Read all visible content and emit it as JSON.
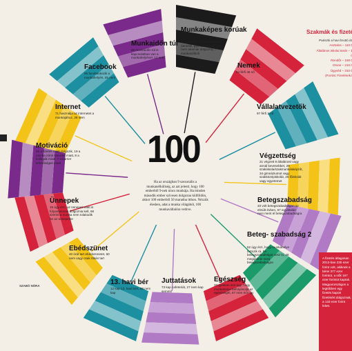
{
  "center": {
    "number": "100",
    "text": "Ha az országban 9 szezonális a munkanélküliség, az azt jelenti, hogy 100 emberből 9-nek nincs munkája. Ha minden második ember szívesen dolgozna külföldön, akkor 100 emberből 50 maradna itthon. Nézzük élesben, adat a munka világából, 100 munkavállalóra vetítve."
  },
  "segments": [
    {
      "id": "munkakepes",
      "title": "Munkaképes korúak",
      "body": "61 dolgozik, 12 nem dolgozik (tanulók, gyesen vannak vagy nem akarnak dolgozni), 7 munkanélküli",
      "color": "#1b1b1b"
    },
    {
      "id": "nemek",
      "title": "Nemek",
      "body": "54 férfi\n46 nő",
      "color": "#d4233b"
    },
    {
      "id": "vallalatvezetok",
      "title": "Vállalatvezetők",
      "body": "97 férfi\n3 nő",
      "color": "#1c8fa0"
    },
    {
      "id": "vegzettseg",
      "title": "Végzettség",
      "body": "21 végzett 8 általánost vagy annál kevesebbet, 29 szakiskola/szakmunkásképzőt, 34 gimnáziumot vagy szakközépiskolát, 26 főiskolát vagy egyetemet",
      "color": "#f3c318"
    },
    {
      "id": "betegszabadsag",
      "title": "Betegszabadság",
      "body": "33 volt betegszabadságon az elmúlt évben, 67 egyáltalán nem ment el betegszabadságra",
      "color": "#b07ac4"
    },
    {
      "id": "betegszabadsag2",
      "title": "Beteg- szabadság 2",
      "body": "52 úgy érzi, hogy munkahelye tartozik rá, ha betegszabadságot vesz ki, 48 megijednie menj betegszabadságra",
      "color": "#1b9a6a"
    },
    {
      "id": "egeszseg",
      "title": "Egészség",
      "body": "33 gyakran érzi úgy, hogy munkahelye befolyásolja az egészségét, 67 nem érzi így",
      "color": "#d4233b"
    },
    {
      "id": "juttatasok",
      "title": "Juttatások",
      "body": "73 kap cafeteriát, 27 nem kap semmit",
      "color": "#b07ac4"
    },
    {
      "id": "havi-ber",
      "title": "13. havi bér",
      "body": "12 kap 13. havi bért, 88 nem kap",
      "color": "#1c8fa0"
    },
    {
      "id": "ebedszunet",
      "title": "Ebédszünet",
      "body": "40 órát tart ebédszünetet, 60 nem vagy csak ritkán tart",
      "color": "#f3c318"
    },
    {
      "id": "unnepek",
      "title": "Ünnepek",
      "body": "15 úgy érzi, az ünnepek alatt is folyamatosan dolgoznia kell, 68 szerint a munka nem tolakodik be az ünnepeibe",
      "color": "#d4233b"
    },
    {
      "id": "motivacio",
      "title": "Motiváció",
      "body": "45 a fizetés miatt dolgozik, 19 a munka iránti szeretet miatt, 8 a kollégák miatt, 7 a karrier lehetőségek miatt",
      "color": "#7a2a8a"
    },
    {
      "id": "internet",
      "title": "Internet",
      "body": "71 használja az internetet a munkájához, 29 nem",
      "color": "#f3c318"
    },
    {
      "id": "facebook",
      "title": "Facebook",
      "body": "55 facebookozik a munkahelyén, 45 nem",
      "color": "#1c8fa0"
    },
    {
      "id": "munkaidon-tul",
      "title": "Munkaidőn túl",
      "body": "88 munkaidőn túl is kapcsolatban van a munkahelyével, 12 nem",
      "color": "#7a2a8a"
    }
  ],
  "right_box": {
    "title": "Szakmák és fizetések",
    "rows": [
      "Pariszki a havi bruttó átlag",
      "Asztalos – 110 000",
      "Általános iskolai tanár – 160 000",
      "Rendőr – 150 000",
      "Orvos – 210 000",
      "Ügyvéd – 310 000",
      "(Forrás: Fizetések.hu)"
    ]
  },
  "right_red_panel": "A fizetés átlagosan 2013-ban 230 ezer forint volt, akiknek a bérei 377 ezer forintot, a nők 167 ezer forintot kaptak. Magyarországon a legtöbben egy fizetés kapott fizetésért dolgoznak, a 133 ezer forint felett.",
  "side_left_bottom_tag": "SZABÓ NÓRA"
}
